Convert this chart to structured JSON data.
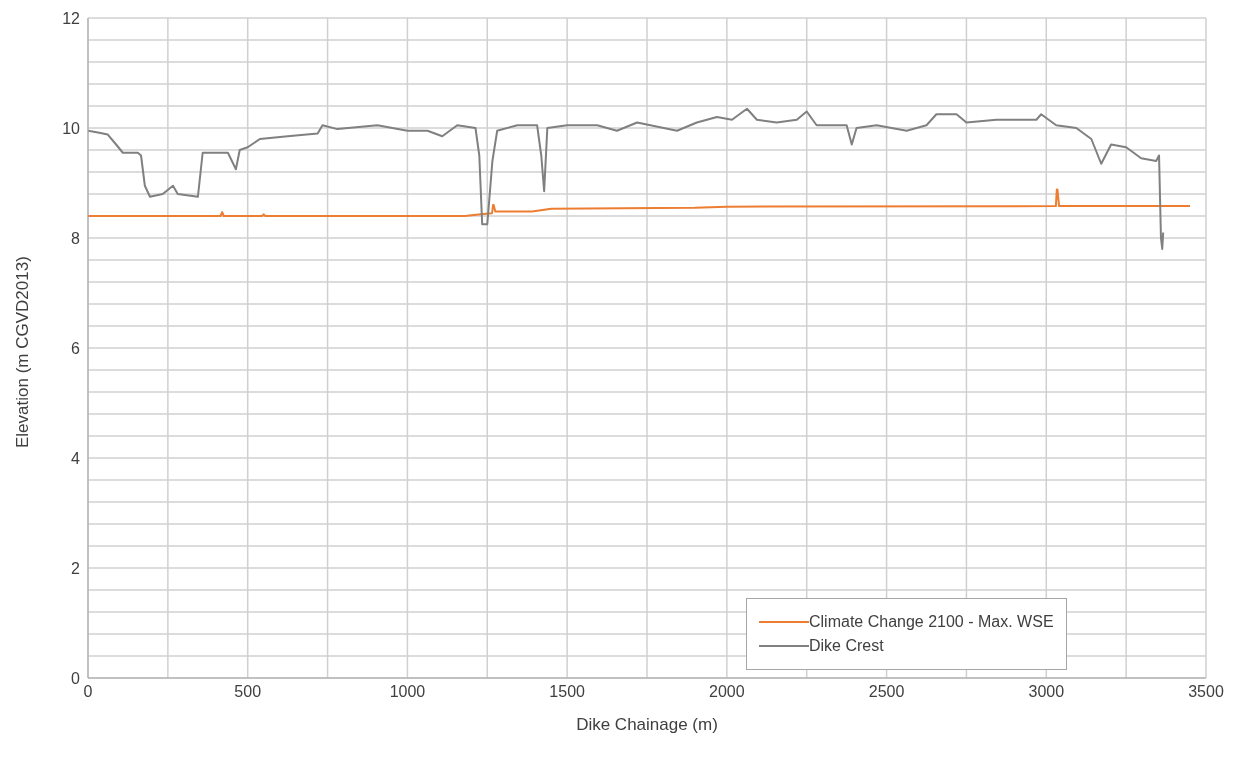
{
  "chart_data": {
    "type": "line",
    "xlabel": "Dike Chainage (m)",
    "ylabel": "Elevation (m CGVD2013)",
    "xlim": [
      0,
      3500
    ],
    "ylim": [
      0,
      12
    ],
    "xticks": [
      0,
      {
        "value": 250,
        "label": null
      },
      500,
      {
        "value": 750,
        "label": null
      },
      1000,
      {
        "value": 1250,
        "label": null
      },
      1500,
      {
        "value": 1750,
        "label": null
      },
      2000,
      {
        "value": 2250,
        "label": null
      },
      2500,
      {
        "value": 2750,
        "label": null
      },
      3000,
      {
        "value": 3250,
        "label": null
      },
      3500
    ],
    "yticks": [
      0,
      {
        "value": 0.4,
        "label": null
      },
      {
        "value": 0.8,
        "label": null
      },
      {
        "value": 1.2,
        "label": null
      },
      {
        "value": 1.6,
        "label": null
      },
      2,
      {
        "value": 2.4,
        "label": null
      },
      {
        "value": 2.8,
        "label": null
      },
      {
        "value": 3.2,
        "label": null
      },
      {
        "value": 3.6,
        "label": null
      },
      4,
      {
        "value": 4.4,
        "label": null
      },
      {
        "value": 4.8,
        "label": null
      },
      {
        "value": 5.2,
        "label": null
      },
      {
        "value": 5.6,
        "label": null
      },
      6,
      {
        "value": 6.4,
        "label": null
      },
      {
        "value": 6.8,
        "label": null
      },
      {
        "value": 7.2,
        "label": null
      },
      {
        "value": 7.6,
        "label": null
      },
      8,
      {
        "value": 8.4,
        "label": null
      },
      {
        "value": 8.8,
        "label": null
      },
      {
        "value": 9.2,
        "label": null
      },
      {
        "value": 9.6,
        "label": null
      },
      10,
      {
        "value": 10.4,
        "label": null
      },
      {
        "value": 10.8,
        "label": null
      },
      {
        "value": 11.2,
        "label": null
      },
      {
        "value": 11.6,
        "label": null
      },
      12
    ],
    "grid": true,
    "legend": "bottom right",
    "marker": "none",
    "line_style": "solid",
    "series": [
      {
        "name": "Climate Change 2100 - Max. WSE",
        "color": "#ed7d31",
        "x": [
          0,
          415,
          420,
          425,
          545,
          550,
          555,
          1180,
          1230,
          1265,
          1268,
          1270,
          1275,
          1390,
          1450,
          1900,
          2000,
          3030,
          3033,
          3035,
          3040,
          3450
        ],
        "values": [
          8.4,
          8.4,
          8.47,
          8.4,
          8.4,
          8.43,
          8.4,
          8.4,
          8.43,
          8.45,
          8.6,
          8.6,
          8.48,
          8.48,
          8.53,
          8.55,
          8.57,
          8.58,
          8.88,
          8.88,
          8.58,
          8.58
        ]
      },
      {
        "name": "Dike Crest",
        "color": "#808080",
        "x": [
          0,
          31,
          62,
          88,
          109,
          156,
          166,
          178,
          194,
          234,
          266,
          281,
          344,
          359,
          406,
          438,
          463,
          475,
          500,
          538,
          625,
          719,
          734,
          781,
          906,
          1000,
          1063,
          1109,
          1156,
          1213,
          1225,
          1234,
          1250,
          1266,
          1281,
          1344,
          1406,
          1419,
          1428,
          1438,
          1500,
          1594,
          1656,
          1719,
          1844,
          1906,
          1969,
          2016,
          2063,
          2094,
          2156,
          2219,
          2250,
          2281,
          2375,
          2391,
          2406,
          2469,
          2563,
          2625,
          2656,
          2719,
          2750,
          2844,
          2969,
          2984,
          3031,
          3094,
          3141,
          3172,
          3203,
          3250,
          3297,
          3344,
          3353,
          3359,
          3363,
          3366
        ],
        "values": [
          9.95,
          9.92,
          9.88,
          9.7,
          9.55,
          9.55,
          9.5,
          8.95,
          8.75,
          8.8,
          8.95,
          8.8,
          8.75,
          9.55,
          9.55,
          9.55,
          9.25,
          9.6,
          9.65,
          9.8,
          9.85,
          9.9,
          10.05,
          9.98,
          10.05,
          9.95,
          9.95,
          9.85,
          10.05,
          10.0,
          9.5,
          8.25,
          8.25,
          9.4,
          9.95,
          10.05,
          10.05,
          9.5,
          8.85,
          10.0,
          10.05,
          10.05,
          9.95,
          10.1,
          9.95,
          10.1,
          10.2,
          10.15,
          10.35,
          10.15,
          10.1,
          10.15,
          10.3,
          10.05,
          10.05,
          9.7,
          10.0,
          10.05,
          9.95,
          10.05,
          10.25,
          10.25,
          10.1,
          10.15,
          10.15,
          10.25,
          10.05,
          10.0,
          9.8,
          9.35,
          9.7,
          9.65,
          9.45,
          9.4,
          9.5,
          8.0,
          7.8,
          8.1
        ]
      }
    ]
  }
}
